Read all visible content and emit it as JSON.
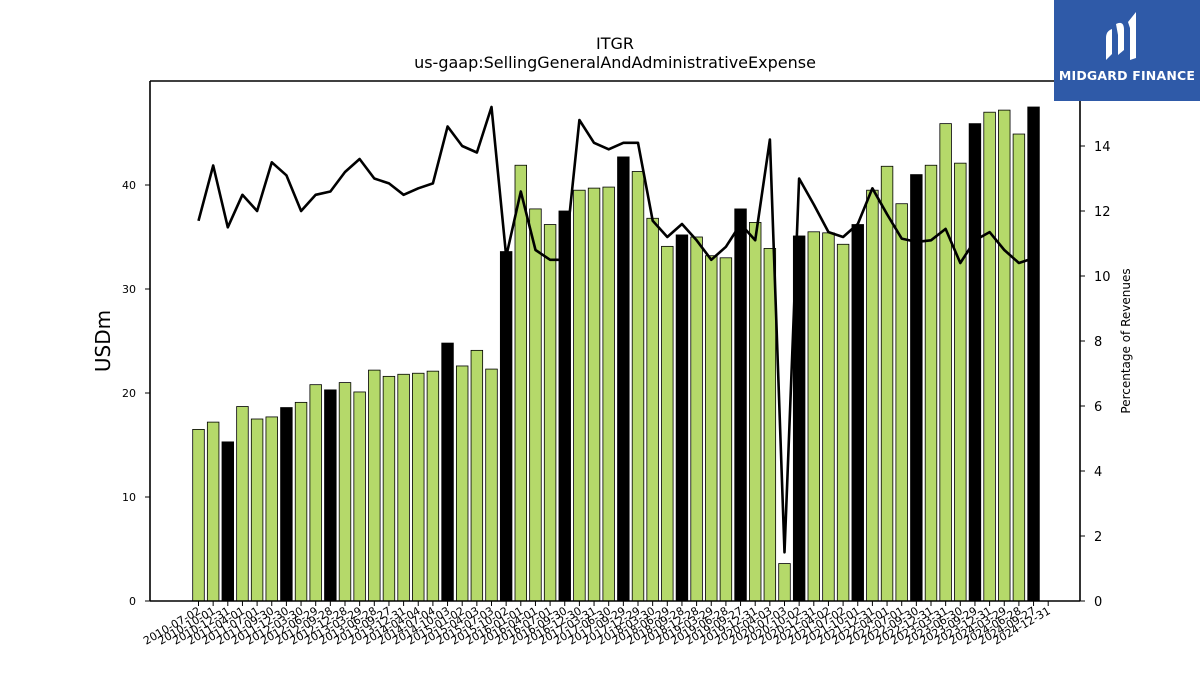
{
  "chart_data": {
    "type": "bar",
    "title": "ITGR",
    "subtitle": "us-gaap:SellingGeneralAndAdministrativeExpense",
    "ylabel": "USDm",
    "y2label": "Percentage of Revenues",
    "ylim": [
      0,
      50
    ],
    "y2lim": [
      0,
      16
    ],
    "yticks": [
      0,
      10,
      20,
      30,
      40
    ],
    "y2ticks": [
      0,
      2,
      4,
      6,
      8,
      10,
      12,
      14
    ],
    "colors": {
      "quarter_bar": "#b5d96a",
      "annual_bar": "#000000",
      "line": "#000000",
      "bar_edge": "#000000"
    },
    "categories": [
      "2010-07-02",
      "2010-10-01",
      "2010-12-31",
      "2011-04-01",
      "2011-07-01",
      "2011-09-30",
      "2011-12-30",
      "2012-03-30",
      "2012-06-29",
      "2012-09-28",
      "2012-12-28",
      "2013-03-29",
      "2013-06-28",
      "2013-09-27",
      "2013-12-31",
      "2014-04-04",
      "2014-07-04",
      "2014-10-03",
      "2015-01-02",
      "2015-04-03",
      "2015-07-03",
      "2015-10-02",
      "2016-01-01",
      "2016-04-01",
      "2016-07-01",
      "2016-09-30",
      "2016-12-30",
      "2017-03-31",
      "2017-06-30",
      "2017-09-29",
      "2017-12-29",
      "2018-03-30",
      "2018-06-29",
      "2018-09-28",
      "2018-12-28",
      "2019-03-29",
      "2019-06-28",
      "2019-09-27",
      "2019-12-31",
      "2020-04-03",
      "2020-07-03",
      "2020-10-02",
      "2020-12-31",
      "2021-04-02",
      "2021-07-02",
      "2021-10-01",
      "2021-12-31",
      "2022-04-01",
      "2022-07-01",
      "2022-09-30",
      "2022-12-31",
      "2023-03-31",
      "2023-06-30",
      "2023-09-29",
      "2023-12-31",
      "2024-03-29",
      "2024-06-28",
      "2024-09-27",
      "2024-12-31"
    ],
    "series": [
      {
        "kind": "bar",
        "values": [
          16.5,
          17.2,
          15.3,
          18.7,
          17.5,
          17.7,
          18.6,
          19.1,
          20.8,
          20.3,
          21.0,
          20.1,
          22.2,
          21.6,
          21.8,
          21.9,
          22.1,
          24.8,
          22.6,
          24.1,
          22.3,
          33.6,
          41.9,
          37.7,
          36.2,
          37.5,
          39.5,
          39.7,
          39.8,
          42.7,
          41.3,
          36.8,
          34.1,
          35.2,
          35.0,
          33.2,
          33.0,
          37.7,
          36.4,
          33.9,
          3.6,
          35.1,
          35.5,
          35.4,
          34.3,
          36.2,
          39.5,
          41.8,
          38.2,
          41.0,
          41.9,
          45.9,
          42.1,
          45.9,
          47.0,
          47.2,
          44.9,
          47.5,
          null
        ],
        "annual": [
          false,
          false,
          true,
          false,
          false,
          false,
          true,
          false,
          false,
          true,
          false,
          false,
          false,
          false,
          false,
          false,
          false,
          true,
          false,
          false,
          false,
          true,
          false,
          false,
          false,
          true,
          false,
          false,
          false,
          true,
          false,
          false,
          false,
          true,
          false,
          false,
          false,
          true,
          false,
          false,
          false,
          true,
          false,
          false,
          false,
          true,
          false,
          false,
          false,
          true,
          false,
          false,
          false,
          true,
          false,
          false,
          false,
          true,
          false
        ]
      },
      {
        "kind": "line",
        "axis": "y2",
        "values": [
          11.7,
          13.4,
          11.5,
          12.5,
          12.0,
          13.5,
          13.1,
          12.0,
          12.5,
          12.6,
          13.2,
          13.6,
          13.0,
          12.85,
          12.5,
          12.7,
          12.85,
          14.6,
          14.0,
          13.8,
          15.2,
          10.6,
          12.6,
          10.8,
          10.5,
          10.5,
          14.8,
          14.1,
          13.9,
          14.1,
          14.1,
          11.7,
          11.2,
          11.6,
          11.1,
          10.5,
          10.9,
          11.6,
          11.1,
          14.2,
          1.5,
          13.0,
          12.2,
          11.35,
          11.2,
          11.6,
          12.7,
          11.9,
          11.15,
          11.05,
          11.1,
          11.45,
          10.4,
          11.1,
          11.35,
          10.8,
          10.4,
          10.55,
          null
        ]
      }
    ]
  },
  "logo": {
    "text": "MIDGARD FINANCE"
  }
}
